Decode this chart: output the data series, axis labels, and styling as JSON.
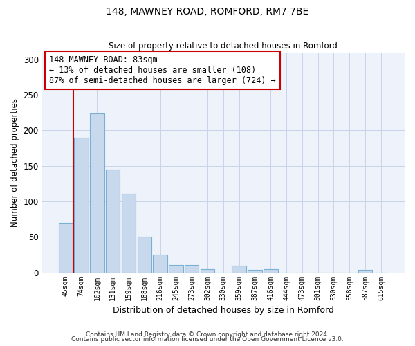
{
  "title1": "148, MAWNEY ROAD, ROMFORD, RM7 7BE",
  "title2": "Size of property relative to detached houses in Romford",
  "xlabel": "Distribution of detached houses by size in Romford",
  "ylabel": "Number of detached properties",
  "categories": [
    "45sqm",
    "74sqm",
    "102sqm",
    "131sqm",
    "159sqm",
    "188sqm",
    "216sqm",
    "245sqm",
    "273sqm",
    "302sqm",
    "330sqm",
    "359sqm",
    "387sqm",
    "416sqm",
    "444sqm",
    "473sqm",
    "501sqm",
    "530sqm",
    "558sqm",
    "587sqm",
    "615sqm"
  ],
  "values": [
    70,
    190,
    224,
    145,
    111,
    50,
    25,
    10,
    10,
    4,
    0,
    9,
    3,
    4,
    0,
    0,
    0,
    0,
    0,
    3,
    0
  ],
  "bar_color": "#c8d9ee",
  "bar_edgecolor": "#7ab0d4",
  "vline_x": 0.5,
  "vline_color": "#cc0000",
  "annotation_text": "148 MAWNEY ROAD: 83sqm\n← 13% of detached houses are smaller (108)\n87% of semi-detached houses are larger (724) →",
  "annotation_box_edgecolor": "#cc0000",
  "ylim": [
    0,
    310
  ],
  "yticks": [
    0,
    50,
    100,
    150,
    200,
    250,
    300
  ],
  "grid_color": "#c8d4e8",
  "background_color": "#edf2fb",
  "footer1": "Contains HM Land Registry data © Crown copyright and database right 2024.",
  "footer2": "Contains public sector information licensed under the Open Government Licence v3.0."
}
